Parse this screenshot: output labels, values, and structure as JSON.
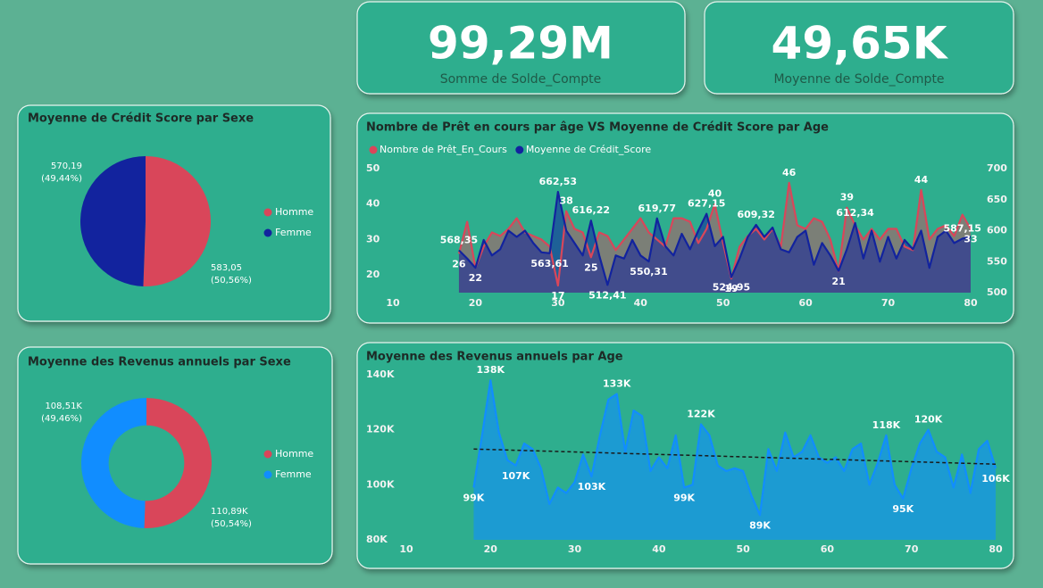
{
  "cards": [
    {
      "value": "99,29M",
      "label": "Somme de Solde_Compte"
    },
    {
      "value": "49,65K",
      "label": "Moyenne de Solde_Compte"
    }
  ],
  "chart_data": [
    {
      "type": "pie",
      "title": "Moyenne de Crédit Score par Sexe",
      "categories": [
        "Homme",
        "Femme"
      ],
      "values": [
        583.05,
        570.19
      ],
      "value_labels": [
        "583,05",
        "570,19"
      ],
      "percent_labels": [
        "(50,56%)",
        "(49,44%)"
      ],
      "colors": [
        "#D9465A",
        "#12239E"
      ]
    },
    {
      "type": "line",
      "title": "Nombre de Prêt en cours par âge VS Moyenne de Crédit Score par Age",
      "x": [
        18,
        19,
        20,
        21,
        22,
        23,
        24,
        25,
        26,
        27,
        28,
        29,
        30,
        31,
        32,
        33,
        34,
        35,
        36,
        37,
        38,
        39,
        40,
        41,
        42,
        43,
        44,
        45,
        46,
        47,
        48,
        49,
        50,
        51,
        52,
        53,
        54,
        55,
        56,
        57,
        58,
        59,
        60,
        61,
        62,
        63,
        64,
        65,
        66,
        67,
        68,
        69,
        70,
        71,
        72,
        73,
        74,
        75,
        76,
        77,
        78,
        79,
        80
      ],
      "xlim": [
        10,
        80
      ],
      "xticks": [
        10,
        20,
        30,
        40,
        50,
        60,
        70,
        80
      ],
      "ylim": [
        15,
        50
      ],
      "yticks": [
        20,
        30,
        40,
        50
      ],
      "y2lim": [
        500,
        700
      ],
      "y2ticks": [
        500,
        550,
        600,
        650,
        700
      ],
      "series": [
        {
          "name": "Nombre de Prêt_En_Cours",
          "color": "#D9465A",
          "values": [
            26,
            35,
            22,
            28,
            32,
            31,
            33,
            36,
            32,
            31,
            30,
            28,
            17,
            38,
            33,
            32,
            25,
            32,
            31,
            27,
            30,
            33,
            36,
            32,
            30,
            28,
            36,
            36,
            35,
            29,
            33,
            40,
            29,
            19,
            28,
            31,
            33,
            30,
            33,
            28,
            46,
            34,
            33,
            36,
            35,
            30,
            21,
            39,
            34,
            30,
            33,
            30,
            33,
            33,
            28,
            27,
            44,
            30,
            33,
            34,
            31,
            37,
            33
          ],
          "value_labels": [
            "26",
            null,
            "22",
            null,
            null,
            null,
            null,
            null,
            null,
            null,
            null,
            null,
            "17",
            "38",
            null,
            null,
            "25",
            null,
            null,
            null,
            null,
            null,
            null,
            null,
            null,
            null,
            null,
            null,
            null,
            null,
            null,
            "40",
            null,
            "19",
            null,
            null,
            null,
            null,
            null,
            null,
            "46",
            null,
            null,
            null,
            null,
            null,
            "21",
            "39",
            null,
            null,
            null,
            null,
            null,
            null,
            null,
            null,
            "44",
            null,
            null,
            null,
            null,
            null,
            "33"
          ]
        },
        {
          "name": "Moyenne de Crédit_Score",
          "color": "#12239E",
          "axis": "y2",
          "values": [
            568.35,
            555,
            540,
            585,
            560,
            570,
            600,
            590,
            600,
            580,
            565,
            563.61,
            662.53,
            600,
            580,
            560,
            616.22,
            560,
            512.41,
            560,
            555,
            585,
            560,
            550.31,
            619.77,
            575,
            560,
            595,
            570,
            600,
            627.15,
            575,
            590,
            524.95,
            555,
            590,
            609.32,
            590,
            605,
            570,
            565,
            590,
            600,
            545,
            580,
            560,
            535,
            570,
            612.34,
            555,
            600,
            550,
            590,
            555,
            585,
            570,
            600,
            540,
            590,
            600,
            580,
            587.15,
            590
          ],
          "value_labels": [
            "568,35",
            null,
            null,
            null,
            null,
            null,
            null,
            null,
            null,
            null,
            null,
            "563,61",
            "662,53",
            null,
            null,
            null,
            "616,22",
            null,
            "512,41",
            null,
            null,
            null,
            null,
            "550,31",
            "619,77",
            null,
            null,
            null,
            null,
            null,
            "627,15",
            null,
            null,
            "524,95",
            null,
            null,
            "609,32",
            null,
            null,
            null,
            null,
            null,
            null,
            null,
            null,
            null,
            null,
            null,
            "612,34",
            null,
            null,
            null,
            null,
            null,
            null,
            null,
            null,
            null,
            null,
            null,
            null,
            "587,15",
            null
          ]
        }
      ]
    },
    {
      "type": "donut",
      "title": "Moyenne des Revenus annuels par Sexe",
      "categories": [
        "Homme",
        "Femme"
      ],
      "values": [
        110890,
        108510
      ],
      "value_labels": [
        "110,89K",
        "108,51K"
      ],
      "percent_labels": [
        "(50,54%)",
        "(49,46%)"
      ],
      "colors": [
        "#D9465A",
        "#118DFF"
      ]
    },
    {
      "type": "line",
      "title": "Moyenne des Revenus annuels par Age",
      "x": [
        18,
        19,
        20,
        21,
        22,
        23,
        24,
        25,
        26,
        27,
        28,
        29,
        30,
        31,
        32,
        33,
        34,
        35,
        36,
        37,
        38,
        39,
        40,
        41,
        42,
        43,
        44,
        45,
        46,
        47,
        48,
        49,
        50,
        51,
        52,
        53,
        54,
        55,
        56,
        57,
        58,
        59,
        60,
        61,
        62,
        63,
        64,
        65,
        66,
        67,
        68,
        69,
        70,
        71,
        72,
        73,
        74,
        75,
        76,
        77,
        78,
        79,
        80
      ],
      "xlim": [
        10,
        80
      ],
      "xticks": [
        10,
        20,
        30,
        40,
        50,
        60,
        70,
        80
      ],
      "ylim": [
        80000,
        140000
      ],
      "yticks": [
        {
          "value": 80000,
          "label": "80K"
        },
        {
          "value": 100000,
          "label": "100K"
        },
        {
          "value": 120000,
          "label": "120K"
        },
        {
          "value": 140000,
          "label": "140K"
        }
      ],
      "color": "#118DFF",
      "values": [
        99000,
        118000,
        138000,
        119000,
        109000,
        107000,
        115000,
        113000,
        106000,
        93000,
        99000,
        97000,
        101000,
        111000,
        103000,
        118000,
        131000,
        133000,
        112000,
        127000,
        125000,
        105000,
        110000,
        106000,
        118000,
        99000,
        100000,
        122000,
        118000,
        107000,
        105000,
        106000,
        105000,
        96000,
        89000,
        113000,
        105000,
        119000,
        110000,
        112000,
        118000,
        110000,
        108000,
        110000,
        105000,
        113000,
        115000,
        100000,
        108000,
        118000,
        100000,
        95000,
        106000,
        115000,
        120000,
        112000,
        110000,
        99000,
        111000,
        97000,
        113000,
        116000,
        106000
      ],
      "value_labels": [
        "99K",
        null,
        "138K",
        null,
        null,
        "107K",
        null,
        null,
        null,
        null,
        null,
        null,
        null,
        null,
        "103K",
        null,
        null,
        "133K",
        null,
        null,
        null,
        null,
        null,
        null,
        null,
        "99K",
        null,
        "122K",
        null,
        null,
        null,
        null,
        null,
        null,
        "89K",
        null,
        null,
        null,
        null,
        null,
        null,
        null,
        null,
        null,
        null,
        null,
        null,
        null,
        null,
        "118K",
        null,
        "95K",
        null,
        null,
        "120K",
        null,
        null,
        null,
        null,
        null,
        null,
        null,
        "106K"
      ],
      "trend": [
        113000,
        107500
      ]
    }
  ]
}
